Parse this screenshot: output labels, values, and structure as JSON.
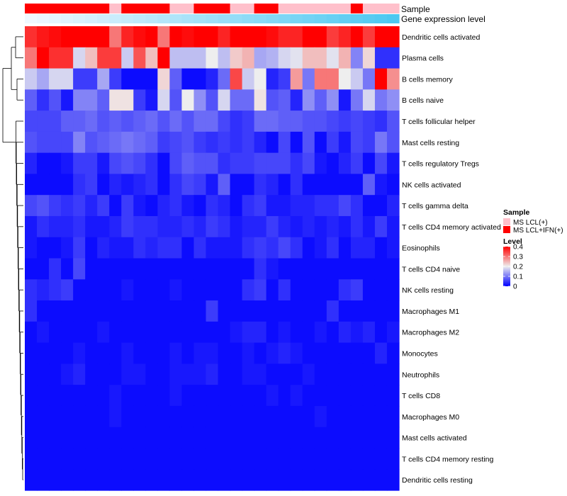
{
  "chart_data": {
    "type": "heatmap",
    "annotation_rows": [
      "Sample",
      "Gene expression level"
    ],
    "rows": [
      "Dendritic cells activated",
      "Plasma cells",
      "B cells memory",
      "B cells naive",
      "T cells follicular helper",
      "Mast cells resting",
      "T cells regulatory  Tregs",
      "NK cells activated",
      "T cells gamma delta",
      "T cells CD4 memory activated",
      "Eosinophils",
      "T cells CD4 naive",
      "NK cells resting",
      "Macrophages M1",
      "Macrophages M2",
      "Monocytes",
      "Neutrophils",
      "T cells CD8",
      "Macrophages M0",
      "Mast cells activated",
      "T cells CD4 memory resting",
      "Dendritic cells resting"
    ],
    "column_count": 31,
    "sample_groups": [
      1,
      1,
      1,
      1,
      1,
      1,
      1,
      0,
      1,
      1,
      1,
      1,
      0,
      0,
      1,
      1,
      1,
      0,
      0,
      1,
      1,
      0,
      0,
      0,
      0,
      0,
      0,
      1,
      0,
      0,
      0
    ],
    "values": [
      [
        0.36,
        0.38,
        0.39,
        0.4,
        0.42,
        0.42,
        0.42,
        0.3,
        0.37,
        0.39,
        0.42,
        0.3,
        0.4,
        0.39,
        0.4,
        0.4,
        0.37,
        0.45,
        0.4,
        0.42,
        0.39,
        0.37,
        0.37,
        0.4,
        0.42,
        0.35,
        0.37,
        0.4,
        0.35,
        0.43,
        0.43
      ],
      [
        0.3,
        0.43,
        0.36,
        0.36,
        0.18,
        0.24,
        0.35,
        0.35,
        0.17,
        0.33,
        0.24,
        0.4,
        0.16,
        0.16,
        0.16,
        0.2,
        0.16,
        0.23,
        0.25,
        0.14,
        0.15,
        0.18,
        0.19,
        0.24,
        0.24,
        0.19,
        0.25,
        0.11,
        0.22,
        0.04,
        0.04
      ],
      [
        0.17,
        0.14,
        0.18,
        0.18,
        0.05,
        0.05,
        0.14,
        0.05,
        0.01,
        0.01,
        0.01,
        0.22,
        0.08,
        0.01,
        0.01,
        0.03,
        0.09,
        0.34,
        0.17,
        0.2,
        0.03,
        0.05,
        0.27,
        0.1,
        0.3,
        0.3,
        0.2,
        0.17,
        0.1,
        0.4,
        0.28
      ],
      [
        0.08,
        0.04,
        0.07,
        0.02,
        0.11,
        0.11,
        0.08,
        0.21,
        0.21,
        0.05,
        0.02,
        0.18,
        0.07,
        0.2,
        0.12,
        0.07,
        0.18,
        0.09,
        0.09,
        0.21,
        0.07,
        0.08,
        0.03,
        0.12,
        0.08,
        0.12,
        0.02,
        0.1,
        0.18,
        0.1,
        0.12
      ],
      [
        0.06,
        0.06,
        0.06,
        0.08,
        0.08,
        0.09,
        0.07,
        0.08,
        0.07,
        0.08,
        0.09,
        0.07,
        0.09,
        0.07,
        0.09,
        0.09,
        0.06,
        0.04,
        0.05,
        0.09,
        0.09,
        0.08,
        0.08,
        0.07,
        0.07,
        0.06,
        0.05,
        0.06,
        0.05,
        0.04,
        0.07
      ],
      [
        0.07,
        0.06,
        0.06,
        0.06,
        0.11,
        0.07,
        0.08,
        0.09,
        0.1,
        0.09,
        0.08,
        0.05,
        0.06,
        0.07,
        0.05,
        0.04,
        0.05,
        0.04,
        0.05,
        0.03,
        0.01,
        0.06,
        0.01,
        0.07,
        0.01,
        0.05,
        0.02,
        0.06,
        0.05,
        0.1,
        0.07
      ],
      [
        0.03,
        0.01,
        0.01,
        0.02,
        0.05,
        0.05,
        0.02,
        0.06,
        0.07,
        0.06,
        0.04,
        0.01,
        0.06,
        0.08,
        0.07,
        0.07,
        0.04,
        0.05,
        0.05,
        0.06,
        0.06,
        0.06,
        0.04,
        0.06,
        0.02,
        0.01,
        0.03,
        0.05,
        0.01,
        0.06,
        0.02
      ],
      [
        0.01,
        0.01,
        0.01,
        0.01,
        0.04,
        0.05,
        0.01,
        0.03,
        0.02,
        0.03,
        0.04,
        0.01,
        0.04,
        0.06,
        0.05,
        0.02,
        0.08,
        0.01,
        0.01,
        0.04,
        0.03,
        0.01,
        0.04,
        0.01,
        0.01,
        0.01,
        0.01,
        0.01,
        0.08,
        0.02,
        0.01
      ],
      [
        0.06,
        0.07,
        0.05,
        0.04,
        0.05,
        0.03,
        0.05,
        0.01,
        0.05,
        0.02,
        0.01,
        0.03,
        0.04,
        0.02,
        0.01,
        0.04,
        0.03,
        0.01,
        0.04,
        0.05,
        0.02,
        0.02,
        0.03,
        0.03,
        0.04,
        0.04,
        0.06,
        0.04,
        0.01,
        0.01,
        0.03
      ],
      [
        0.02,
        0.04,
        0.03,
        0.03,
        0.04,
        0.02,
        0.02,
        0.03,
        0.05,
        0.04,
        0.04,
        0.03,
        0.03,
        0.04,
        0.03,
        0.05,
        0.04,
        0.02,
        0.03,
        0.03,
        0.05,
        0.03,
        0.02,
        0.03,
        0.02,
        0.03,
        0.02,
        0.04,
        0.02,
        0.05,
        0.02
      ],
      [
        0.02,
        0.01,
        0.01,
        0.02,
        0.05,
        0.01,
        0.03,
        0.02,
        0.02,
        0.04,
        0.03,
        0.04,
        0.04,
        0.01,
        0.04,
        0.02,
        0.02,
        0.02,
        0.04,
        0.05,
        0.04,
        0.06,
        0.04,
        0.01,
        0.02,
        0.04,
        0.01,
        0.03,
        0.03,
        0.01,
        0.02
      ],
      [
        0.01,
        0.01,
        0.04,
        0.01,
        0.06,
        0.01,
        0.01,
        0.01,
        0.01,
        0.01,
        0.01,
        0.01,
        0.01,
        0.01,
        0.01,
        0.01,
        0.01,
        0.01,
        0.01,
        0.04,
        0.02,
        0.01,
        0.01,
        0.01,
        0.01,
        0.01,
        0.01,
        0.01,
        0.01,
        0.01,
        0.01
      ],
      [
        0.04,
        0.03,
        0.04,
        0.05,
        0.01,
        0.01,
        0.01,
        0.01,
        0.02,
        0.01,
        0.01,
        0.01,
        0.02,
        0.01,
        0.01,
        0.01,
        0.01,
        0.01,
        0.04,
        0.05,
        0.01,
        0.04,
        0.01,
        0.01,
        0.01,
        0.01,
        0.04,
        0.05,
        0.01,
        0.01,
        0.01
      ],
      [
        0.04,
        0.01,
        0.01,
        0.01,
        0.01,
        0.01,
        0.01,
        0.01,
        0.01,
        0.01,
        0.01,
        0.01,
        0.01,
        0.01,
        0.01,
        0.05,
        0.01,
        0.01,
        0.01,
        0.01,
        0.01,
        0.01,
        0.01,
        0.01,
        0.01,
        0.04,
        0.01,
        0.01,
        0.01,
        0.01,
        0.01
      ],
      [
        0.01,
        0.02,
        0.01,
        0.01,
        0.01,
        0.01,
        0.02,
        0.01,
        0.01,
        0.01,
        0.01,
        0.01,
        0.01,
        0.01,
        0.01,
        0.01,
        0.01,
        0.02,
        0.03,
        0.03,
        0.01,
        0.02,
        0.01,
        0.01,
        0.02,
        0.01,
        0.03,
        0.02,
        0.03,
        0.01,
        0.02
      ],
      [
        0.01,
        0.01,
        0.01,
        0.01,
        0.02,
        0.01,
        0.01,
        0.01,
        0.02,
        0.01,
        0.01,
        0.01,
        0.02,
        0.01,
        0.02,
        0.02,
        0.01,
        0.01,
        0.02,
        0.01,
        0.02,
        0.03,
        0.02,
        0.01,
        0.01,
        0.01,
        0.01,
        0.01,
        0.01,
        0.03,
        0.01
      ],
      [
        0.01,
        0.01,
        0.01,
        0.02,
        0.03,
        0.01,
        0.01,
        0.01,
        0.02,
        0.02,
        0.01,
        0.01,
        0.02,
        0.02,
        0.02,
        0.03,
        0.01,
        0.01,
        0.02,
        0.02,
        0.01,
        0.01,
        0.01,
        0.02,
        0.01,
        0.01,
        0.01,
        0.01,
        0.01,
        0.01,
        0.01
      ],
      [
        0.01,
        0.01,
        0.01,
        0.01,
        0.01,
        0.01,
        0.01,
        0.02,
        0.01,
        0.01,
        0.01,
        0.01,
        0.02,
        0.01,
        0.01,
        0.01,
        0.01,
        0.01,
        0.01,
        0.01,
        0.02,
        0.01,
        0.02,
        0.01,
        0.01,
        0.01,
        0.01,
        0.01,
        0.01,
        0.01,
        0.01
      ],
      [
        0.01,
        0.01,
        0.01,
        0.01,
        0.01,
        0.01,
        0.01,
        0.02,
        0.01,
        0.01,
        0.01,
        0.01,
        0.01,
        0.01,
        0.01,
        0.01,
        0.01,
        0.01,
        0.01,
        0.01,
        0.01,
        0.01,
        0.01,
        0.01,
        0.02,
        0.01,
        0.01,
        0.01,
        0.01,
        0.01,
        0.01
      ],
      [
        0.01,
        0.01,
        0.01,
        0.01,
        0.01,
        0.01,
        0.01,
        0.01,
        0.01,
        0.01,
        0.01,
        0.01,
        0.01,
        0.01,
        0.01,
        0.01,
        0.01,
        0.01,
        0.01,
        0.01,
        0.01,
        0.01,
        0.01,
        0.01,
        0.01,
        0.01,
        0.01,
        0.01,
        0.01,
        0.01,
        0.01
      ],
      [
        0.01,
        0.01,
        0.01,
        0.01,
        0.01,
        0.01,
        0.01,
        0.01,
        0.01,
        0.01,
        0.01,
        0.01,
        0.01,
        0.01,
        0.01,
        0.01,
        0.01,
        0.01,
        0.01,
        0.01,
        0.01,
        0.01,
        0.01,
        0.01,
        0.01,
        0.01,
        0.01,
        0.01,
        0.01,
        0.01,
        0.01
      ],
      [
        0.01,
        0.01,
        0.01,
        0.01,
        0.01,
        0.01,
        0.01,
        0.01,
        0.01,
        0.01,
        0.01,
        0.01,
        0.01,
        0.01,
        0.01,
        0.01,
        0.01,
        0.01,
        0.01,
        0.01,
        0.01,
        0.01,
        0.01,
        0.01,
        0.01,
        0.01,
        0.01,
        0.01,
        0.01,
        0.01,
        0.01
      ]
    ],
    "color_scale": {
      "min": 0,
      "mid": 0.2,
      "max": 0.4,
      "low": "#0000FF",
      "mid_color": "#EEEEEE",
      "high": "#FF0000"
    },
    "sample_legend": {
      "title": "Sample",
      "items": [
        {
          "label": "MS LCL(+)",
          "color": "#FFC0CB"
        },
        {
          "label": "MS LCL+IFN(+)",
          "color": "#FF0000"
        }
      ]
    },
    "level_legend": {
      "title": "Level",
      "ticks": [
        0.4,
        0.3,
        0.2,
        0.1,
        0
      ],
      "tick_labels": [
        "0.4",
        "0.3",
        "0.2",
        "0.1",
        "0"
      ]
    },
    "gene_expression_gradient": {
      "from": "#F0F8FF",
      "to": "#4DC8F0"
    },
    "dendrogram": "row clustering (left)"
  }
}
